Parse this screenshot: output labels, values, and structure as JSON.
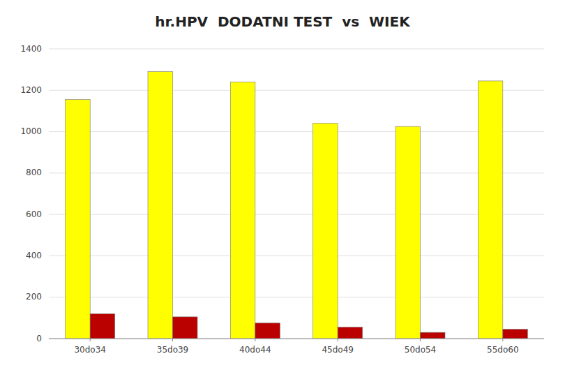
{
  "chart_data": {
    "type": "bar",
    "title": "hr.HPV  DODATNI TEST  vs  WIEK",
    "categories": [
      "30do34",
      "35do39",
      "40do44",
      "45do49",
      "50do54",
      "55do60"
    ],
    "series": [
      {
        "color": "#FFFF00",
        "values": [
          1155,
          1290,
          1240,
          1040,
          1025,
          1245
        ]
      },
      {
        "color": "#BB0000",
        "values": [
          120,
          105,
          75,
          55,
          30,
          45
        ]
      }
    ],
    "ylim": [
      0,
      1400
    ],
    "yticks": [
      0,
      200,
      400,
      600,
      800,
      1000,
      1200,
      1400
    ],
    "grid": true
  }
}
